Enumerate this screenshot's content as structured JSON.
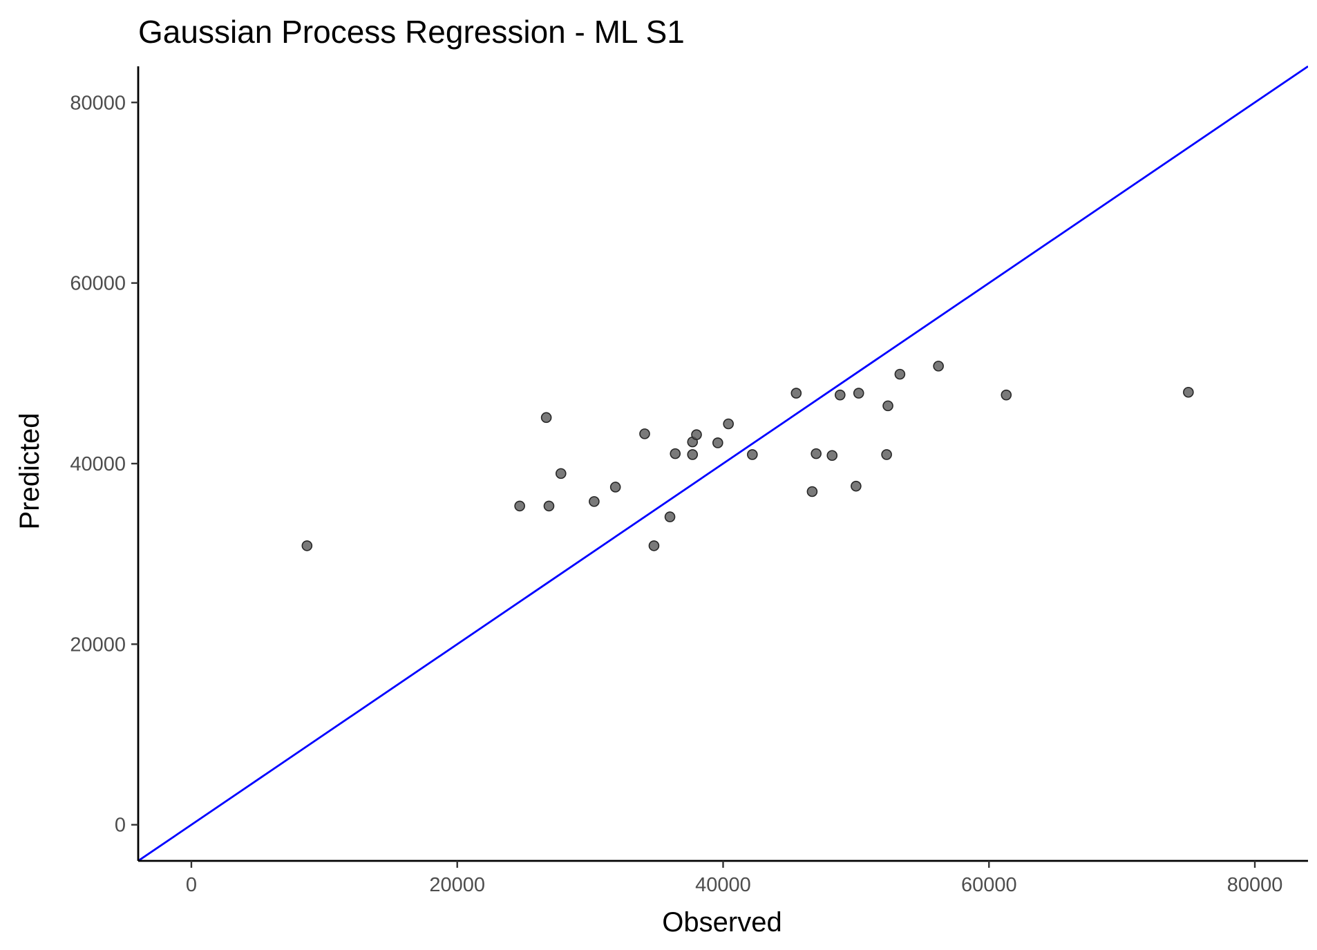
{
  "chart_data": {
    "type": "scatter",
    "title": "Gaussian Process Regression - ML S1",
    "xlabel": "Observed",
    "ylabel": "Predicted",
    "xlim": [
      -4000,
      84000
    ],
    "ylim": [
      -4000,
      84000
    ],
    "xticks": [
      0,
      20000,
      40000,
      60000,
      80000
    ],
    "yticks": [
      0,
      20000,
      40000,
      60000,
      80000
    ],
    "xtick_labels": [
      "0",
      "20000",
      "40000",
      "60000",
      "80000"
    ],
    "ytick_labels": [
      "0",
      "20000",
      "40000",
      "60000",
      "80000"
    ],
    "grid": false,
    "reference_line": {
      "type": "identity",
      "slope": 1,
      "intercept": 0,
      "color": "#0000ff"
    },
    "point_color": "#595959",
    "points": [
      {
        "x": 8700,
        "y": 30900
      },
      {
        "x": 24700,
        "y": 35300
      },
      {
        "x": 26700,
        "y": 45100
      },
      {
        "x": 26900,
        "y": 35300
      },
      {
        "x": 27800,
        "y": 38900
      },
      {
        "x": 30300,
        "y": 35800
      },
      {
        "x": 31900,
        "y": 37400
      },
      {
        "x": 34100,
        "y": 43300
      },
      {
        "x": 34800,
        "y": 30900
      },
      {
        "x": 36000,
        "y": 34100
      },
      {
        "x": 36400,
        "y": 41100
      },
      {
        "x": 37700,
        "y": 42400
      },
      {
        "x": 37700,
        "y": 41000
      },
      {
        "x": 38000,
        "y": 43200
      },
      {
        "x": 39600,
        "y": 42300
      },
      {
        "x": 40400,
        "y": 44400
      },
      {
        "x": 42200,
        "y": 41000
      },
      {
        "x": 45500,
        "y": 47800
      },
      {
        "x": 46700,
        "y": 36900
      },
      {
        "x": 47000,
        "y": 41100
      },
      {
        "x": 48200,
        "y": 40900
      },
      {
        "x": 48800,
        "y": 47600
      },
      {
        "x": 50000,
        "y": 37500
      },
      {
        "x": 50200,
        "y": 47800
      },
      {
        "x": 52300,
        "y": 41000
      },
      {
        "x": 52400,
        "y": 46400
      },
      {
        "x": 53300,
        "y": 49900
      },
      {
        "x": 56200,
        "y": 50800
      },
      {
        "x": 61300,
        "y": 47600
      },
      {
        "x": 75000,
        "y": 47900
      }
    ]
  }
}
